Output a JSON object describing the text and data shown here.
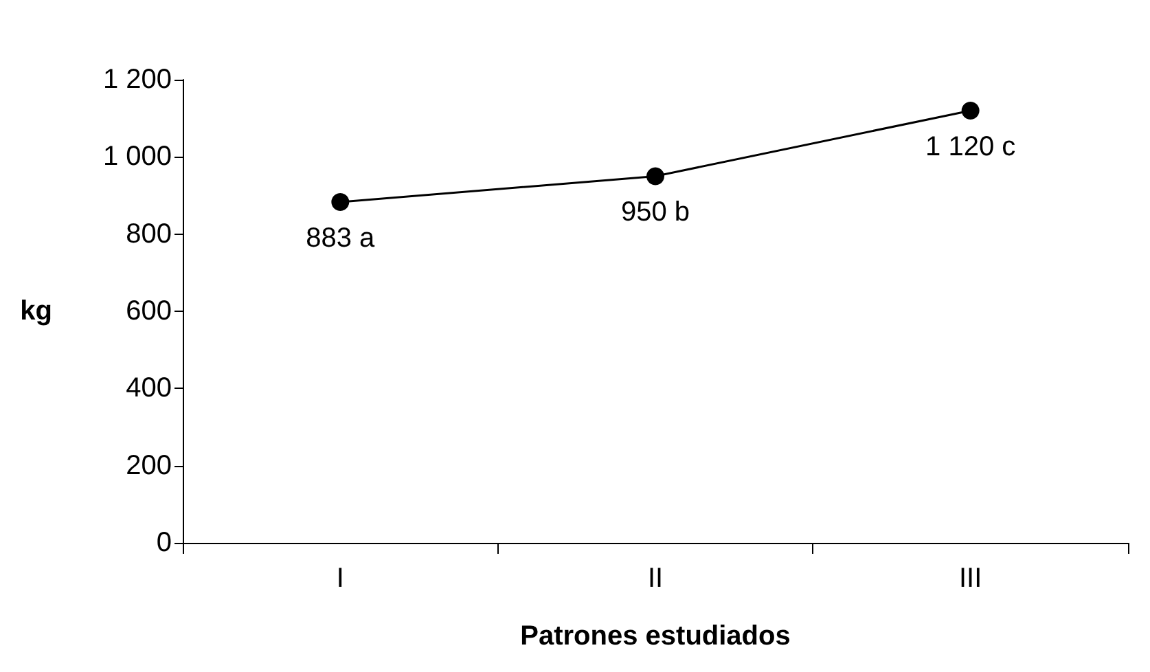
{
  "chart_data": {
    "type": "line",
    "xlabel": "Patrones estudiados",
    "ylabel": "kg",
    "categories": [
      "I",
      "II",
      "III"
    ],
    "series": [
      {
        "color": "#000000",
        "values": [
          883,
          950,
          1120
        ],
        "value_labels": [
          "883 a",
          "950 b",
          "1 120 c"
        ]
      }
    ],
    "ylim": [
      0,
      1200
    ],
    "yticks": [
      0,
      200,
      400,
      600,
      800,
      {
        "value": 1000,
        "label": "1 000"
      },
      {
        "value": 1200,
        "label": "1 200"
      }
    ],
    "grid": false,
    "marker": "circle",
    "line_style": "solid"
  }
}
